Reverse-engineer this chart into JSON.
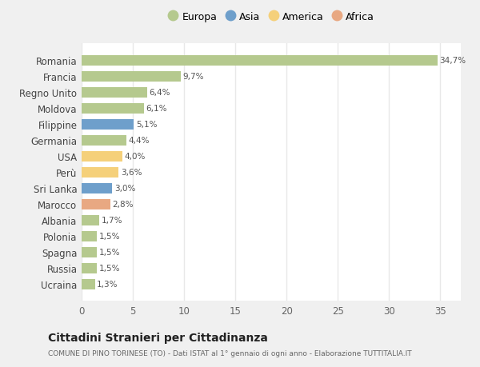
{
  "countries": [
    "Romania",
    "Francia",
    "Regno Unito",
    "Moldova",
    "Filippine",
    "Germania",
    "USA",
    "Perù",
    "Sri Lanka",
    "Marocco",
    "Albania",
    "Polonia",
    "Spagna",
    "Russia",
    "Ucraina"
  ],
  "values": [
    34.7,
    9.7,
    6.4,
    6.1,
    5.1,
    4.4,
    4.0,
    3.6,
    3.0,
    2.8,
    1.7,
    1.5,
    1.5,
    1.5,
    1.3
  ],
  "labels": [
    "34,7%",
    "9,7%",
    "6,4%",
    "6,1%",
    "5,1%",
    "4,4%",
    "4,0%",
    "3,6%",
    "3,0%",
    "2,8%",
    "1,7%",
    "1,5%",
    "1,5%",
    "1,5%",
    "1,3%"
  ],
  "continents": [
    "Europa",
    "Europa",
    "Europa",
    "Europa",
    "Asia",
    "Europa",
    "America",
    "America",
    "Asia",
    "Africa",
    "Europa",
    "Europa",
    "Europa",
    "Europa",
    "Europa"
  ],
  "colors": {
    "Europa": "#b5c98e",
    "Asia": "#6e9fcb",
    "America": "#f5d07a",
    "Africa": "#e8a882"
  },
  "legend_order": [
    "Europa",
    "Asia",
    "America",
    "Africa"
  ],
  "title": "Cittadini Stranieri per Cittadinanza",
  "subtitle": "COMUNE DI PINO TORINESE (TO) - Dati ISTAT al 1° gennaio di ogni anno - Elaborazione TUTTITALIA.IT",
  "xlim": [
    0,
    37
  ],
  "xticks": [
    0,
    5,
    10,
    15,
    20,
    25,
    30,
    35
  ],
  "figure_bg": "#f0f0f0",
  "plot_bg": "#ffffff",
  "grid_color": "#e8e8e8"
}
